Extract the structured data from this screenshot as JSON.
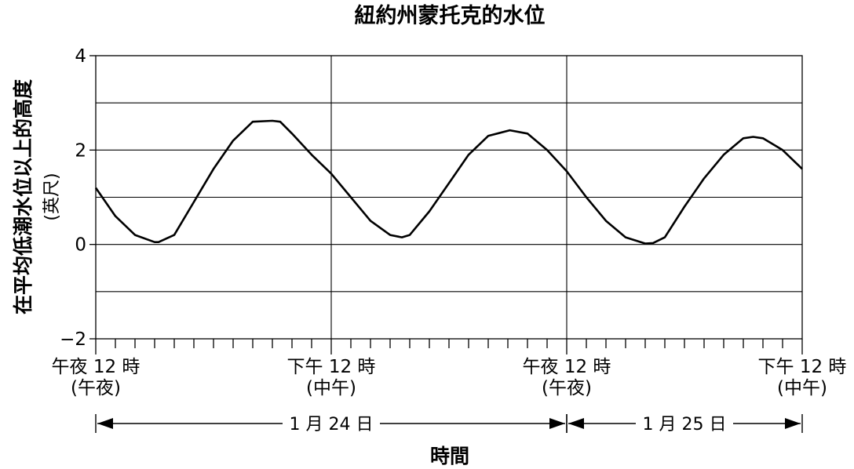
{
  "chart_data": {
    "type": "line",
    "title": "紐約州蒙托克的水位",
    "ylabel": "在平均低潮水位以上的高度",
    "yunit": "(英尺)",
    "xlabel": "時間",
    "ylim": [
      -2,
      4
    ],
    "yticks": [
      {
        "value": -2,
        "label": "−2"
      },
      {
        "value": 0,
        "label": "0"
      },
      {
        "value": 2,
        "label": "2"
      },
      {
        "value": 4,
        "label": "4"
      }
    ],
    "ygrid": [
      -1,
      0,
      1,
      2,
      3,
      4
    ],
    "xlim_hours": [
      0,
      36
    ],
    "x_major_labels": [
      {
        "hour": 0,
        "line1": "午夜 12 時",
        "line2": "(午夜)"
      },
      {
        "hour": 12,
        "line1": "下午 12 時",
        "line2": "(中午)"
      },
      {
        "hour": 24,
        "line1": "午夜 12 時",
        "line2": "(午夜)"
      },
      {
        "hour": 36,
        "line1": "下午 12 時",
        "line2": "(中午)"
      }
    ],
    "date_spans": [
      {
        "from_hour": 0,
        "to_hour": 24,
        "label": "1 月 24 日"
      },
      {
        "from_hour": 24,
        "to_hour": 36,
        "label": "1 月 25 日"
      }
    ],
    "series": [
      {
        "x": [
          0,
          1,
          2,
          3,
          3.2,
          4,
          5,
          6,
          7,
          8,
          9,
          9.4,
          10,
          11,
          12,
          13,
          14,
          15,
          15.6,
          16,
          17,
          18,
          19,
          20,
          21.1,
          22,
          23,
          24,
          25,
          26,
          27,
          28,
          28.4,
          29,
          30,
          31,
          32,
          33,
          33.5,
          34,
          35,
          36
        ],
        "y": [
          1.2,
          0.6,
          0.2,
          0.05,
          0.05,
          0.2,
          0.9,
          1.6,
          2.2,
          2.6,
          2.62,
          2.6,
          2.35,
          1.9,
          1.5,
          1.0,
          0.5,
          0.2,
          0.15,
          0.2,
          0.7,
          1.3,
          1.9,
          2.3,
          2.42,
          2.35,
          2.0,
          1.55,
          1.0,
          0.5,
          0.15,
          0.02,
          0.03,
          0.15,
          0.8,
          1.4,
          1.9,
          2.25,
          2.28,
          2.25,
          2.0,
          1.6
        ]
      }
    ]
  }
}
